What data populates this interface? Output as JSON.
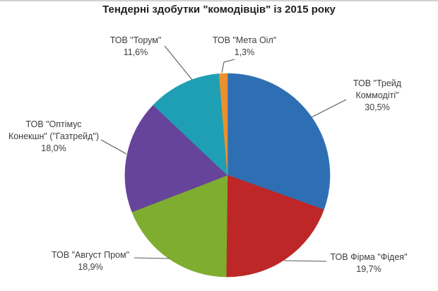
{
  "chart_data": {
    "type": "pie",
    "title": "Тендерні здобутки \"комодівців\" із 2015 року",
    "legend_position": "none",
    "label_style": "outside-callouts-with-leader-lines",
    "start_angle_deg": 0,
    "direction": "clockwise",
    "value_format": "percent-comma-decimal",
    "slices": [
      {
        "name": "ТОВ \"Трейд Коммодіті\"",
        "value": 30.5,
        "percent_label": "30,5%",
        "color": "#2e6fb4",
        "label_lines": [
          "ТОВ \"Трейд",
          "Коммодіті\"",
          "30,5%"
        ]
      },
      {
        "name": "ТОВ Фірма \"Фідея\"",
        "value": 19.7,
        "percent_label": "19,7%",
        "color": "#bd2727",
        "label_lines": [
          "ТОВ Фірма \"Фідея\"",
          "19,7%"
        ]
      },
      {
        "name": "ТОВ \"Август Пром\"",
        "value": 18.9,
        "percent_label": "18,9%",
        "color": "#7ead2f",
        "label_lines": [
          "ТОВ \"Август Пром\"",
          "18,9%"
        ]
      },
      {
        "name": "ТОВ \"Оптімус Конекшн\" (\"Газтрейд\")",
        "value": 18.0,
        "percent_label": "18,0%",
        "color": "#67449b",
        "label_lines": [
          "ТОВ \"Оптімус",
          "Конекшн\" (\"Газтрейд\")",
          "18,0%"
        ]
      },
      {
        "name": "ТОВ \"Торум\"",
        "value": 11.6,
        "percent_label": "11,6%",
        "color": "#1f9fb4",
        "label_lines": [
          "ТОВ \"Торум\"",
          "11,6%"
        ]
      },
      {
        "name": "ТОВ \"Мета Оіл\"",
        "value": 1.3,
        "percent_label": "1,3%",
        "color": "#e8912e",
        "label_lines": [
          "ТОВ \"Мета Оіл\"",
          "1,3%"
        ]
      }
    ]
  }
}
